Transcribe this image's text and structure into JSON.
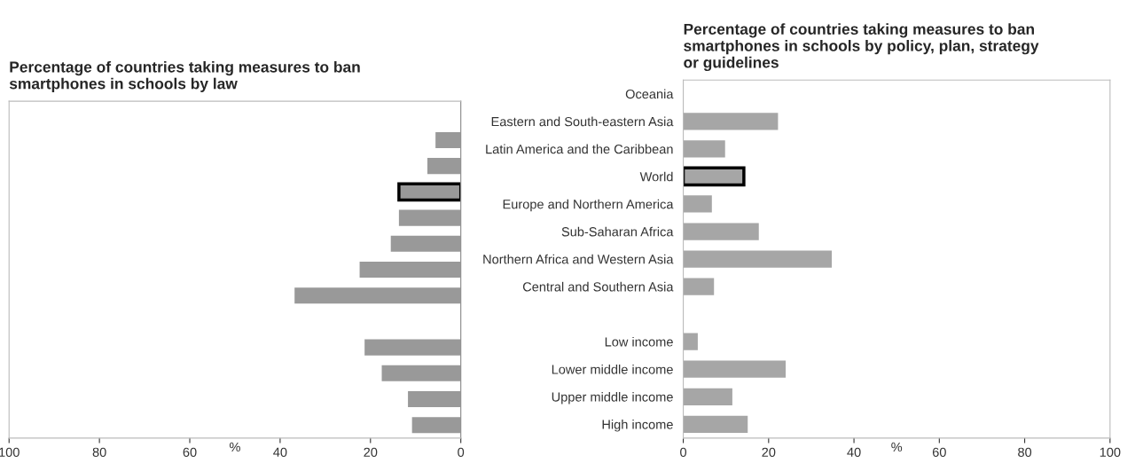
{
  "chart_data": [
    {
      "type": "bar",
      "orientation": "horizontal",
      "title": "Percentage of countries taking measures to ban\nsmartphones in schools by law",
      "xlabel": "%",
      "categories": [
        null,
        null,
        null,
        null,
        null,
        null,
        null,
        null,
        null,
        null,
        null,
        null,
        null
      ],
      "series": [
        {
          "color": "#999999",
          "values": [
            null,
            5.6,
            7.4,
            null,
            13.7,
            15.5,
            22.4,
            36.8,
            null,
            21.3,
            17.5,
            11.7,
            10.8
          ]
        },
        {
          "color": "#999999",
          "values": [
            null,
            null,
            null,
            13.7,
            null,
            null,
            null,
            null,
            null,
            null,
            null,
            null,
            null
          ]
        }
      ],
      "xlim": [
        100,
        0
      ],
      "xticks": [
        100,
        80,
        60,
        40,
        20,
        0
      ],
      "tick_labels": "x"
    },
    {
      "type": "bar",
      "orientation": "horizontal",
      "title": "Percentage of countries taking measures to ban\nsmartphones in schools by policy, plan, strategy\nor guidelines",
      "xlabel": "%",
      "categories": [
        "Oceania",
        "Eastern and South-eastern Asia",
        "Latin America and the Caribbean",
        "World",
        "Europe and Northern America",
        "Sub-Saharan Africa",
        "Northern Africa and Western Asia",
        "Central and Southern Asia",
        null,
        "Low income",
        "Lower middle income",
        "Upper middle income",
        "High income"
      ],
      "series": [
        {
          "color": "#a6a6a6",
          "values": [
            null,
            22.2,
            9.8,
            null,
            6.7,
            17.7,
            34.8,
            7.2,
            null,
            3.4,
            24.0,
            11.5,
            15.1
          ]
        },
        {
          "color": "#a6a6a6",
          "values": [
            null,
            null,
            null,
            14.2,
            null,
            null,
            null,
            null,
            null,
            null,
            null,
            null,
            null
          ]
        }
      ],
      "xlim": [
        0,
        100
      ],
      "xticks": [
        0,
        20,
        40,
        60,
        80,
        100
      ]
    }
  ]
}
